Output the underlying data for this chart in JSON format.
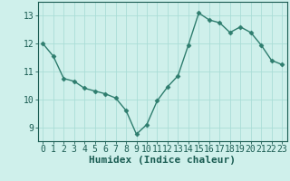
{
  "x": [
    0,
    1,
    2,
    3,
    4,
    5,
    6,
    7,
    8,
    9,
    10,
    11,
    12,
    13,
    14,
    15,
    16,
    17,
    18,
    19,
    20,
    21,
    22,
    23
  ],
  "y": [
    12.0,
    11.55,
    10.75,
    10.65,
    10.4,
    10.3,
    10.2,
    10.05,
    9.6,
    8.75,
    9.1,
    9.95,
    10.45,
    10.85,
    11.95,
    13.1,
    12.85,
    12.75,
    12.4,
    12.6,
    12.4,
    11.95,
    11.4,
    11.25
  ],
  "line_color": "#2e7d6e",
  "marker": "D",
  "marker_size": 2.5,
  "bg_color": "#cff0eb",
  "grid_color": "#aaddd7",
  "xlabel": "Humidex (Indice chaleur)",
  "xlabel_color": "#1a5c52",
  "tick_color": "#1a5c52",
  "axis_color": "#1a5c52",
  "ylim": [
    8.5,
    13.5
  ],
  "xlim": [
    -0.5,
    23.5
  ],
  "yticks": [
    9,
    10,
    11,
    12,
    13
  ],
  "xtick_labels": [
    "0",
    "1",
    "2",
    "3",
    "4",
    "5",
    "6",
    "7",
    "8",
    "9",
    "10",
    "11",
    "12",
    "13",
    "14",
    "15",
    "16",
    "17",
    "18",
    "19",
    "20",
    "21",
    "22",
    "23"
  ],
  "line_width": 1.0,
  "font_size": 7.0,
  "xlabel_fontsize": 8.0
}
